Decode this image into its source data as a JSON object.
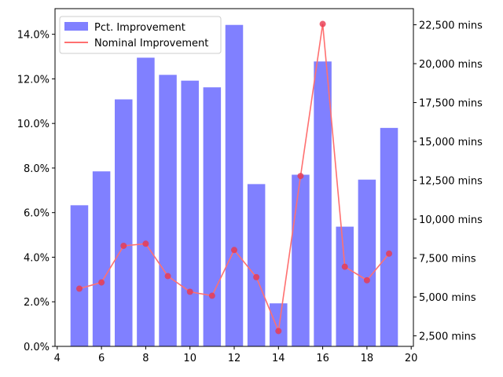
{
  "chart_data": {
    "type": "bar+line",
    "x": [
      5,
      6,
      7,
      8,
      9,
      10,
      11,
      12,
      13,
      14,
      15,
      16,
      17,
      18,
      19
    ],
    "series": [
      {
        "name": "Pct. Improvement",
        "type": "bar",
        "axis": "left",
        "color": "#8080ff",
        "values": [
          0.0633,
          0.0785,
          0.1108,
          0.1295,
          0.1218,
          0.1192,
          0.1162,
          0.1442,
          0.0728,
          0.0193,
          0.077,
          0.1278,
          0.0537,
          0.0748,
          0.098
        ]
      },
      {
        "name": "Nominal Improvement",
        "type": "line",
        "axis": "right",
        "color": "#ff7070",
        "marker_color": "#e8384f",
        "values": [
          5535,
          5937,
          8290,
          8424,
          6342,
          5334,
          5080,
          8021,
          6275,
          2812,
          12777,
          22550,
          6945,
          6074,
          7787
        ]
      }
    ],
    "x_axis": {
      "range": [
        3.9,
        20.1
      ],
      "ticks": [
        4,
        6,
        8,
        10,
        12,
        14,
        16,
        18,
        20
      ],
      "tick_labels": [
        "4",
        "6",
        "8",
        "10",
        "12",
        "14",
        "16",
        "18",
        "20"
      ]
    },
    "y_axis_left": {
      "range": [
        0,
        0.1515
      ],
      "ticks": [
        0,
        0.02,
        0.04,
        0.06,
        0.08,
        0.1,
        0.12,
        0.14
      ],
      "tick_labels": [
        "0.0%",
        "2.0%",
        "4.0%",
        "6.0%",
        "8.0%",
        "10.0%",
        "12.0%",
        "14.0%"
      ]
    },
    "y_axis_right": {
      "range": [
        1825,
        23537
      ],
      "ticks": [
        2500,
        5000,
        7500,
        10000,
        12500,
        15000,
        17500,
        20000,
        22500
      ],
      "tick_labels": [
        "2,500 mins",
        "5,000 mins",
        "7,500 mins",
        "10,000 mins",
        "12,500 mins",
        "15,000 mins",
        "17,500 mins",
        "20,000 mins",
        "22,500 mins"
      ]
    },
    "legend": {
      "position": "top-left",
      "entries": [
        "Pct. Improvement",
        "Nominal Improvement"
      ]
    },
    "grid": false
  }
}
